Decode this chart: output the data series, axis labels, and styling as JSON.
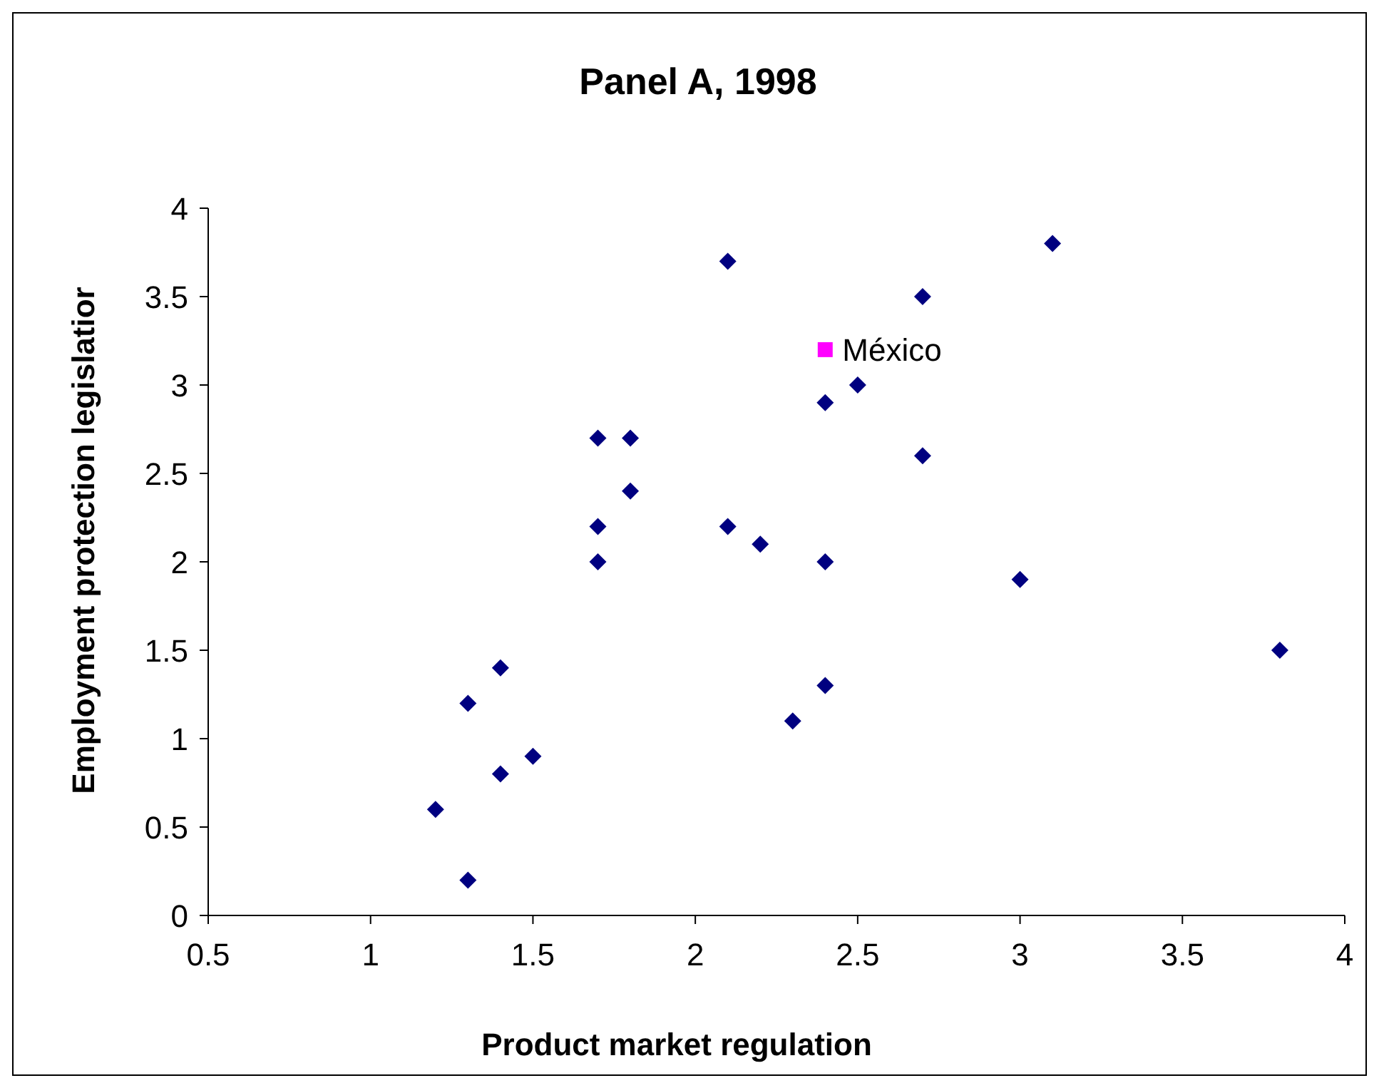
{
  "chart_data": {
    "type": "scatter",
    "title": "Panel A, 1998",
    "xlabel": "Product market regulation",
    "ylabel": "Employment protection legislatior",
    "xlim": [
      0.5,
      4
    ],
    "xticks": [
      0.5,
      1,
      1.5,
      2,
      2.5,
      3,
      3.5,
      4
    ],
    "ylim": [
      0,
      4
    ],
    "yticks": [
      0,
      0.5,
      1,
      1.5,
      2,
      2.5,
      3,
      3.5,
      4
    ],
    "grid": false,
    "series": [
      {
        "color": "#000080",
        "marker": "diamond",
        "x": [
          1.2,
          1.3,
          1.3,
          1.4,
          1.4,
          1.5,
          1.7,
          1.7,
          1.7,
          1.8,
          1.8,
          2.1,
          2.1,
          2.2,
          2.3,
          2.4,
          2.4,
          2.4,
          2.5,
          2.7,
          2.7,
          3.0,
          3.1,
          3.8
        ],
        "values": [
          0.6,
          0.2,
          1.2,
          1.4,
          0.8,
          0.9,
          2.7,
          2.2,
          2.0,
          2.7,
          2.4,
          3.7,
          2.2,
          2.1,
          1.1,
          2.9,
          2.0,
          1.3,
          3.0,
          3.5,
          2.6,
          1.9,
          3.8,
          1.5
        ]
      },
      {
        "name": "México",
        "color": "#ff00ff",
        "marker": "square",
        "x": [
          2.4
        ],
        "values": [
          3.2
        ]
      }
    ]
  }
}
